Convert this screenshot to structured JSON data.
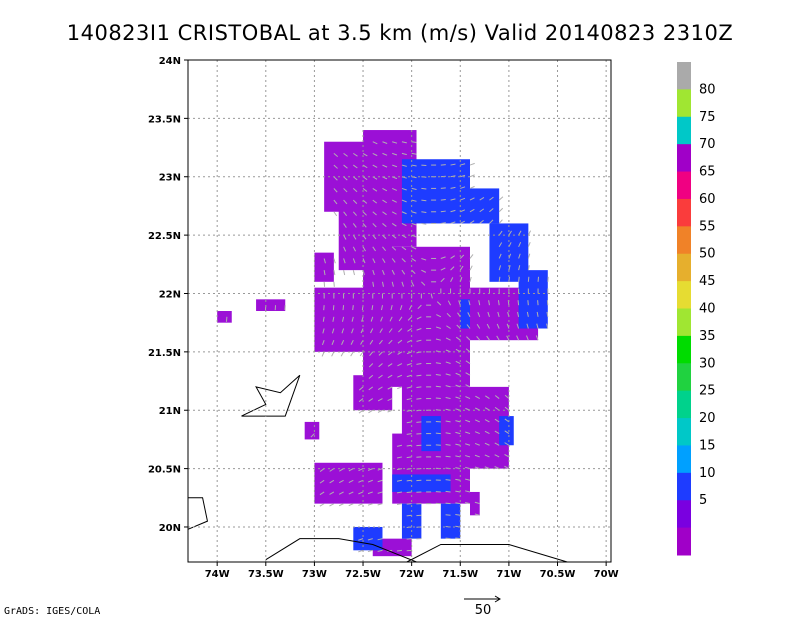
{
  "chart_data": {
    "type": "heatmap",
    "title": "140823I1 CRISTOBAL at 3.5 km (m/s) Valid 20140823 2310Z",
    "x_ticks": [
      "74W",
      "73.5W",
      "73W",
      "72.5W",
      "72W",
      "71.5W",
      "71W",
      "70.5W",
      "70W"
    ],
    "y_ticks": [
      "24N",
      "23.5N",
      "23N",
      "22.5N",
      "22N",
      "21.5N",
      "21N",
      "20.5N",
      "20N"
    ],
    "xlim": [
      -74.3,
      -69.95
    ],
    "ylim": [
      19.7,
      24.0
    ],
    "colorbar": {
      "labels": [
        "5",
        "10",
        "15",
        "20",
        "25",
        "30",
        "35",
        "40",
        "45",
        "50",
        "55",
        "60",
        "65",
        "70",
        "75",
        "80"
      ],
      "colors": [
        "#a000c8",
        "#7a00e0",
        "#1e3cff",
        "#00a0ff",
        "#00c8c8",
        "#00d28c",
        "#20d240",
        "#00dc00",
        "#a0e632",
        "#e6dc32",
        "#e6af2d",
        "#f08228",
        "#fa3c3c",
        "#f00082",
        "#a000c8",
        "#00c8c8",
        "#a0e632",
        "#aaaaaa"
      ]
    },
    "region_summary": "Doppler wind speed field, mostly 5 m/s (purple) with 10 m/s (blue) patches",
    "vector_scale_label": "50",
    "credit": "GrADS: IGES/COLA"
  }
}
